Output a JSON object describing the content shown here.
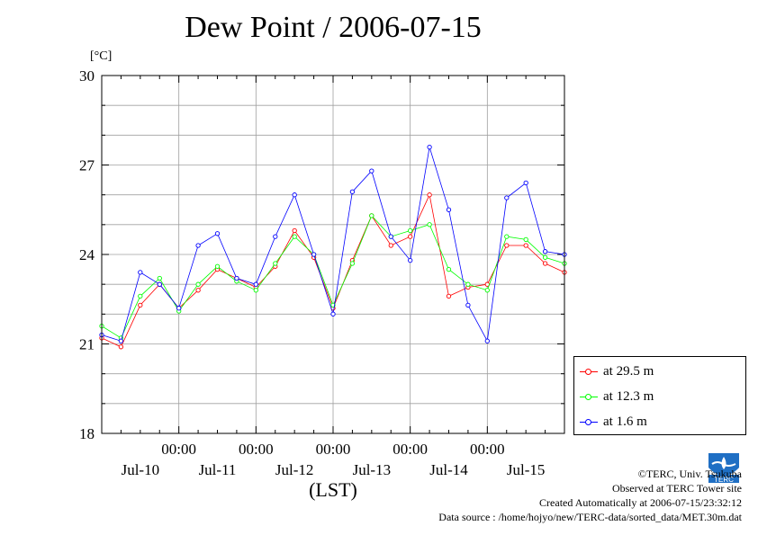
{
  "title": "Dew Point / 2006-07-15",
  "unit_label": "[°C]",
  "x_axis_label": "(LST)",
  "credits": {
    "copyright": "©TERC, Univ. Tsukuba",
    "site": "Observed at TERC Tower site",
    "created": "Created Automatically at 2006-07-15/23:32:12",
    "source": "Data source : /home/hojyo/new/TERC-data/sorted_data/MET.30m.dat"
  },
  "logo_text": "TERC",
  "chart_data": {
    "type": "line",
    "title": "Dew Point / 2006-07-15",
    "ylabel": "[°C]",
    "xlabel": "(LST)",
    "ylim": [
      18,
      30
    ],
    "yticks": [
      "18",
      "21",
      "24",
      "27",
      "30"
    ],
    "xlim_days": [
      0,
      6
    ],
    "xticks_top": [
      "00:00",
      "00:00",
      "00:00",
      "00:00",
      "00:00"
    ],
    "xticks_bottom": [
      "Jul-10",
      "Jul-11",
      "Jul-12",
      "Jul-13",
      "Jul-14",
      "Jul-15"
    ],
    "grid": true,
    "legend_position": "right-bottom",
    "series": [
      {
        "name": "at 29.5 m",
        "color": "#ff0000",
        "x_day": [
          0.0,
          0.25,
          0.5,
          0.75,
          1.0,
          1.25,
          1.5,
          1.75,
          2.0,
          2.25,
          2.5,
          2.75,
          3.0,
          3.25,
          3.5,
          3.75,
          4.0,
          4.25,
          4.5,
          4.75,
          5.0,
          5.25,
          5.5,
          5.75,
          6.0
        ],
        "values": [
          21.2,
          20.9,
          22.3,
          23.0,
          22.2,
          22.8,
          23.5,
          23.2,
          22.9,
          23.6,
          24.8,
          23.9,
          22.2,
          23.8,
          25.3,
          24.3,
          24.6,
          26.0,
          22.6,
          22.9,
          23.0,
          24.3,
          24.3,
          23.7,
          23.4
        ]
      },
      {
        "name": "at 12.3 m",
        "color": "#00ff00",
        "x_day": [
          0.0,
          0.25,
          0.5,
          0.75,
          1.0,
          1.25,
          1.5,
          1.75,
          2.0,
          2.25,
          2.5,
          2.75,
          3.0,
          3.25,
          3.5,
          3.75,
          4.0,
          4.25,
          4.5,
          4.75,
          5.0,
          5.25,
          5.5,
          5.75,
          6.0
        ],
        "values": [
          21.6,
          21.2,
          22.6,
          23.2,
          22.1,
          23.0,
          23.6,
          23.1,
          22.8,
          23.7,
          24.6,
          24.0,
          22.3,
          23.7,
          25.3,
          24.6,
          24.8,
          25.0,
          23.5,
          23.0,
          22.8,
          24.6,
          24.5,
          23.9,
          23.7
        ]
      },
      {
        "name": "at 1.6 m",
        "color": "#0000ff",
        "x_day": [
          0.0,
          0.25,
          0.5,
          0.75,
          1.0,
          1.25,
          1.5,
          1.75,
          2.0,
          2.25,
          2.5,
          2.75,
          3.0,
          3.25,
          3.5,
          3.75,
          4.0,
          4.25,
          4.5,
          4.75,
          5.0,
          5.25,
          5.5,
          5.75,
          6.0
        ],
        "values": [
          21.3,
          21.1,
          23.4,
          23.0,
          22.2,
          24.3,
          24.7,
          23.2,
          23.0,
          24.6,
          26.0,
          24.0,
          22.0,
          26.1,
          26.8,
          24.6,
          23.8,
          27.6,
          25.5,
          22.3,
          21.1,
          25.9,
          26.4,
          24.1,
          24.0
        ]
      }
    ]
  }
}
